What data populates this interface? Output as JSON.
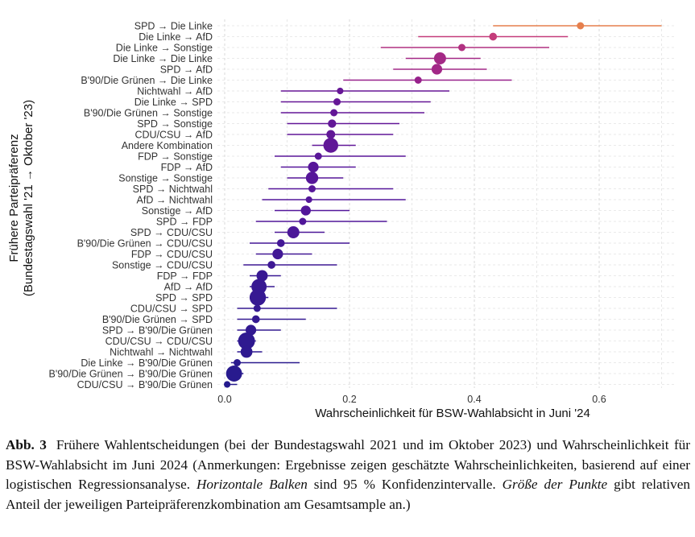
{
  "chart_data": {
    "type": "scatter",
    "subtype": "dot-with-confidence-interval",
    "xlabel": "Wahrscheinlichkeit für BSW-Wahlabsicht in Juni '24",
    "ylabel_line1": "Frühere Parteipräferenz",
    "ylabel_line2": "(Bundestagswahl '21 → Oktober '23)",
    "xlim": [
      -0.02,
      0.72
    ],
    "xticks": [
      0.0,
      0.2,
      0.4,
      0.6
    ],
    "xtick_labels": [
      "0.0",
      "0.2",
      "0.4",
      "0.6"
    ],
    "grid": true,
    "color_scale": [
      "#1b1b8a",
      "#52169a",
      "#8c1a8f",
      "#c43c7a",
      "#e8844a"
    ],
    "points": [
      {
        "label": "SPD → Die Linke",
        "estimate": 0.57,
        "ci_low": 0.43,
        "ci_high": 0.7,
        "size": 0.3
      },
      {
        "label": "Die Linke → AfD",
        "estimate": 0.43,
        "ci_low": 0.31,
        "ci_high": 0.55,
        "size": 0.4
      },
      {
        "label": "Die Linke → Sonstige",
        "estimate": 0.38,
        "ci_low": 0.25,
        "ci_high": 0.52,
        "size": 0.3
      },
      {
        "label": "Die Linke → Die Linke",
        "estimate": 0.345,
        "ci_low": 0.29,
        "ci_high": 0.41,
        "size": 1.6
      },
      {
        "label": "SPD → AfD",
        "estimate": 0.34,
        "ci_low": 0.27,
        "ci_high": 0.42,
        "size": 1.1
      },
      {
        "label": "B'90/Die Grünen → Die Linke",
        "estimate": 0.31,
        "ci_low": 0.19,
        "ci_high": 0.46,
        "size": 0.3
      },
      {
        "label": "Nichtwahl → AfD",
        "estimate": 0.185,
        "ci_low": 0.09,
        "ci_high": 0.36,
        "size": 0.2
      },
      {
        "label": "Die Linke → SPD",
        "estimate": 0.18,
        "ci_low": 0.09,
        "ci_high": 0.33,
        "size": 0.3
      },
      {
        "label": "B'90/Die Grünen → Sonstige",
        "estimate": 0.175,
        "ci_low": 0.09,
        "ci_high": 0.32,
        "size": 0.3
      },
      {
        "label": "SPD → Sonstige",
        "estimate": 0.172,
        "ci_low": 0.1,
        "ci_high": 0.28,
        "size": 0.5
      },
      {
        "label": "CDU/CSU → AfD",
        "estimate": 0.17,
        "ci_low": 0.1,
        "ci_high": 0.27,
        "size": 0.6
      },
      {
        "label": "Andere Kombination",
        "estimate": 0.17,
        "ci_low": 0.14,
        "ci_high": 0.21,
        "size": 2.8
      },
      {
        "label": "FDP → Sonstige",
        "estimate": 0.15,
        "ci_low": 0.08,
        "ci_high": 0.29,
        "size": 0.3
      },
      {
        "label": "FDP → AfD",
        "estimate": 0.142,
        "ci_low": 0.09,
        "ci_high": 0.21,
        "size": 1.1
      },
      {
        "label": "Sonstige → Sonstige",
        "estimate": 0.14,
        "ci_low": 0.1,
        "ci_high": 0.19,
        "size": 1.7
      },
      {
        "label": "SPD → Nichtwahl",
        "estimate": 0.14,
        "ci_low": 0.07,
        "ci_high": 0.27,
        "size": 0.3
      },
      {
        "label": "AfD → Nichtwahl",
        "estimate": 0.135,
        "ci_low": 0.06,
        "ci_high": 0.29,
        "size": 0.2
      },
      {
        "label": "Sonstige → AfD",
        "estimate": 0.13,
        "ci_low": 0.08,
        "ci_high": 0.2,
        "size": 0.9
      },
      {
        "label": "SPD → FDP",
        "estimate": 0.125,
        "ci_low": 0.05,
        "ci_high": 0.26,
        "size": 0.3
      },
      {
        "label": "SPD → CDU/CSU",
        "estimate": 0.11,
        "ci_low": 0.08,
        "ci_high": 0.16,
        "size": 1.6
      },
      {
        "label": "B'90/Die Grünen → CDU/CSU",
        "estimate": 0.09,
        "ci_low": 0.04,
        "ci_high": 0.2,
        "size": 0.4
      },
      {
        "label": "FDP → CDU/CSU",
        "estimate": 0.085,
        "ci_low": 0.05,
        "ci_high": 0.14,
        "size": 1.1
      },
      {
        "label": "Sonstige → CDU/CSU",
        "estimate": 0.075,
        "ci_low": 0.03,
        "ci_high": 0.18,
        "size": 0.4
      },
      {
        "label": "FDP → FDP",
        "estimate": 0.06,
        "ci_low": 0.04,
        "ci_high": 0.09,
        "size": 1.3
      },
      {
        "label": "AfD → AfD",
        "estimate": 0.055,
        "ci_low": 0.04,
        "ci_high": 0.08,
        "size": 3.0
      },
      {
        "label": "SPD → SPD",
        "estimate": 0.053,
        "ci_low": 0.04,
        "ci_high": 0.07,
        "size": 3.6
      },
      {
        "label": "CDU/CSU → SPD",
        "estimate": 0.052,
        "ci_low": 0.02,
        "ci_high": 0.18,
        "size": 0.3
      },
      {
        "label": "B'90/Die Grünen → SPD",
        "estimate": 0.05,
        "ci_low": 0.02,
        "ci_high": 0.13,
        "size": 0.4
      },
      {
        "label": "SPD → B'90/Die Grünen",
        "estimate": 0.042,
        "ci_low": 0.02,
        "ci_high": 0.09,
        "size": 1.1
      },
      {
        "label": "CDU/CSU → CDU/CSU",
        "estimate": 0.035,
        "ci_low": 0.02,
        "ci_high": 0.05,
        "size": 3.9
      },
      {
        "label": "Nichtwahl → Nichtwahl",
        "estimate": 0.035,
        "ci_low": 0.02,
        "ci_high": 0.06,
        "size": 1.5
      },
      {
        "label": "Die Linke → B'90/Die Grünen",
        "estimate": 0.02,
        "ci_low": 0.01,
        "ci_high": 0.12,
        "size": 0.3
      },
      {
        "label": "B'90/Die Grünen → B'90/Die Grünen",
        "estimate": 0.015,
        "ci_low": 0.005,
        "ci_high": 0.03,
        "size": 3.4
      },
      {
        "label": "CDU/CSU → B'90/Die Grünen",
        "estimate": 0.004,
        "ci_low": 0.0,
        "ci_high": 0.02,
        "size": 0.2
      }
    ]
  },
  "caption": {
    "label": "Abb. 3",
    "part1": "Frühere Wahlentscheidungen (bei der Bundestagswahl 2021 und im Oktober 2023) und Wahrscheinlichkeit für BSW-Wahlabsicht im Juni 2024 (Anmerkungen: Ergebnisse zeigen geschätzte Wahrscheinlichkeiten, basierend auf einer logistischen Regressionsanalyse. ",
    "em1": "Horizontale Balken",
    "part2": " sind 95 % Konfidenzintervalle. ",
    "em2": "Größe der Punkte",
    "part3": " gibt relativen Anteil der jeweiligen Parteipräferenzkombination am Gesamtsample an.)"
  }
}
